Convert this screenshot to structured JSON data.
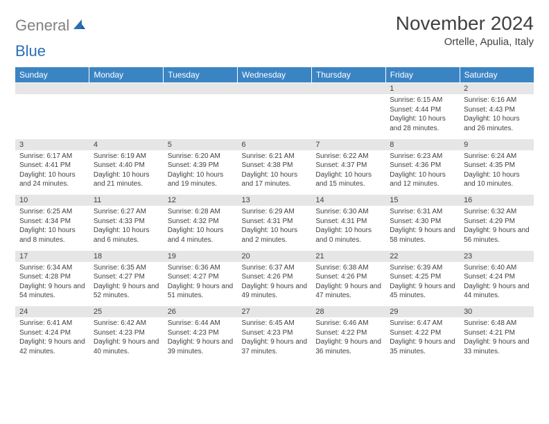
{
  "logo": {
    "gray": "General",
    "blue": "Blue"
  },
  "header": {
    "title": "November 2024",
    "subtitle": "Ortelle, Apulia, Italy"
  },
  "colors": {
    "headerBg": "#3b84c4",
    "headerText": "#ffffff",
    "dayBg": "#e6e6e6",
    "text": "#404040"
  },
  "days": [
    "Sunday",
    "Monday",
    "Tuesday",
    "Wednesday",
    "Thursday",
    "Friday",
    "Saturday"
  ],
  "weeks": [
    [
      {
        "n": "",
        "sr": "",
        "ss": "",
        "dl": ""
      },
      {
        "n": "",
        "sr": "",
        "ss": "",
        "dl": ""
      },
      {
        "n": "",
        "sr": "",
        "ss": "",
        "dl": ""
      },
      {
        "n": "",
        "sr": "",
        "ss": "",
        "dl": ""
      },
      {
        "n": "",
        "sr": "",
        "ss": "",
        "dl": ""
      },
      {
        "n": "1",
        "sr": "Sunrise: 6:15 AM",
        "ss": "Sunset: 4:44 PM",
        "dl": "Daylight: 10 hours and 28 minutes."
      },
      {
        "n": "2",
        "sr": "Sunrise: 6:16 AM",
        "ss": "Sunset: 4:43 PM",
        "dl": "Daylight: 10 hours and 26 minutes."
      }
    ],
    [
      {
        "n": "3",
        "sr": "Sunrise: 6:17 AM",
        "ss": "Sunset: 4:41 PM",
        "dl": "Daylight: 10 hours and 24 minutes."
      },
      {
        "n": "4",
        "sr": "Sunrise: 6:19 AM",
        "ss": "Sunset: 4:40 PM",
        "dl": "Daylight: 10 hours and 21 minutes."
      },
      {
        "n": "5",
        "sr": "Sunrise: 6:20 AM",
        "ss": "Sunset: 4:39 PM",
        "dl": "Daylight: 10 hours and 19 minutes."
      },
      {
        "n": "6",
        "sr": "Sunrise: 6:21 AM",
        "ss": "Sunset: 4:38 PM",
        "dl": "Daylight: 10 hours and 17 minutes."
      },
      {
        "n": "7",
        "sr": "Sunrise: 6:22 AM",
        "ss": "Sunset: 4:37 PM",
        "dl": "Daylight: 10 hours and 15 minutes."
      },
      {
        "n": "8",
        "sr": "Sunrise: 6:23 AM",
        "ss": "Sunset: 4:36 PM",
        "dl": "Daylight: 10 hours and 12 minutes."
      },
      {
        "n": "9",
        "sr": "Sunrise: 6:24 AM",
        "ss": "Sunset: 4:35 PM",
        "dl": "Daylight: 10 hours and 10 minutes."
      }
    ],
    [
      {
        "n": "10",
        "sr": "Sunrise: 6:25 AM",
        "ss": "Sunset: 4:34 PM",
        "dl": "Daylight: 10 hours and 8 minutes."
      },
      {
        "n": "11",
        "sr": "Sunrise: 6:27 AM",
        "ss": "Sunset: 4:33 PM",
        "dl": "Daylight: 10 hours and 6 minutes."
      },
      {
        "n": "12",
        "sr": "Sunrise: 6:28 AM",
        "ss": "Sunset: 4:32 PM",
        "dl": "Daylight: 10 hours and 4 minutes."
      },
      {
        "n": "13",
        "sr": "Sunrise: 6:29 AM",
        "ss": "Sunset: 4:31 PM",
        "dl": "Daylight: 10 hours and 2 minutes."
      },
      {
        "n": "14",
        "sr": "Sunrise: 6:30 AM",
        "ss": "Sunset: 4:31 PM",
        "dl": "Daylight: 10 hours and 0 minutes."
      },
      {
        "n": "15",
        "sr": "Sunrise: 6:31 AM",
        "ss": "Sunset: 4:30 PM",
        "dl": "Daylight: 9 hours and 58 minutes."
      },
      {
        "n": "16",
        "sr": "Sunrise: 6:32 AM",
        "ss": "Sunset: 4:29 PM",
        "dl": "Daylight: 9 hours and 56 minutes."
      }
    ],
    [
      {
        "n": "17",
        "sr": "Sunrise: 6:34 AM",
        "ss": "Sunset: 4:28 PM",
        "dl": "Daylight: 9 hours and 54 minutes."
      },
      {
        "n": "18",
        "sr": "Sunrise: 6:35 AM",
        "ss": "Sunset: 4:27 PM",
        "dl": "Daylight: 9 hours and 52 minutes."
      },
      {
        "n": "19",
        "sr": "Sunrise: 6:36 AM",
        "ss": "Sunset: 4:27 PM",
        "dl": "Daylight: 9 hours and 51 minutes."
      },
      {
        "n": "20",
        "sr": "Sunrise: 6:37 AM",
        "ss": "Sunset: 4:26 PM",
        "dl": "Daylight: 9 hours and 49 minutes."
      },
      {
        "n": "21",
        "sr": "Sunrise: 6:38 AM",
        "ss": "Sunset: 4:26 PM",
        "dl": "Daylight: 9 hours and 47 minutes."
      },
      {
        "n": "22",
        "sr": "Sunrise: 6:39 AM",
        "ss": "Sunset: 4:25 PM",
        "dl": "Daylight: 9 hours and 45 minutes."
      },
      {
        "n": "23",
        "sr": "Sunrise: 6:40 AM",
        "ss": "Sunset: 4:24 PM",
        "dl": "Daylight: 9 hours and 44 minutes."
      }
    ],
    [
      {
        "n": "24",
        "sr": "Sunrise: 6:41 AM",
        "ss": "Sunset: 4:24 PM",
        "dl": "Daylight: 9 hours and 42 minutes."
      },
      {
        "n": "25",
        "sr": "Sunrise: 6:42 AM",
        "ss": "Sunset: 4:23 PM",
        "dl": "Daylight: 9 hours and 40 minutes."
      },
      {
        "n": "26",
        "sr": "Sunrise: 6:44 AM",
        "ss": "Sunset: 4:23 PM",
        "dl": "Daylight: 9 hours and 39 minutes."
      },
      {
        "n": "27",
        "sr": "Sunrise: 6:45 AM",
        "ss": "Sunset: 4:23 PM",
        "dl": "Daylight: 9 hours and 37 minutes."
      },
      {
        "n": "28",
        "sr": "Sunrise: 6:46 AM",
        "ss": "Sunset: 4:22 PM",
        "dl": "Daylight: 9 hours and 36 minutes."
      },
      {
        "n": "29",
        "sr": "Sunrise: 6:47 AM",
        "ss": "Sunset: 4:22 PM",
        "dl": "Daylight: 9 hours and 35 minutes."
      },
      {
        "n": "30",
        "sr": "Sunrise: 6:48 AM",
        "ss": "Sunset: 4:21 PM",
        "dl": "Daylight: 9 hours and 33 minutes."
      }
    ]
  ]
}
